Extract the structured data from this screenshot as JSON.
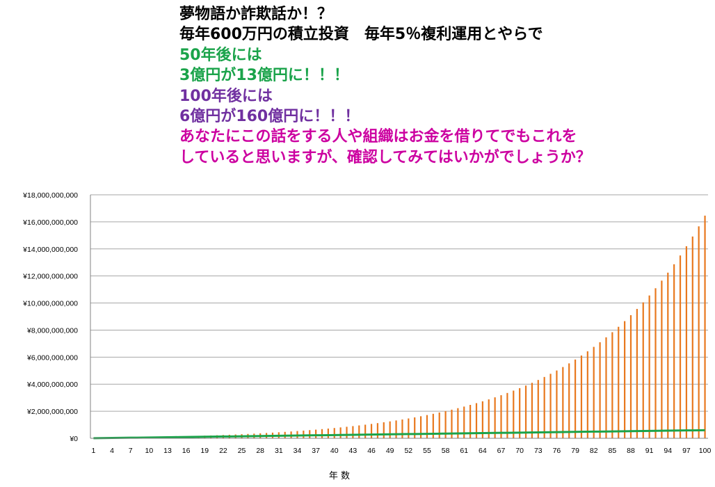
{
  "headline": [
    {
      "text": "夢物語か詐欺話か！？",
      "color": "#000000"
    },
    {
      "text": "毎年600万円の積立投資　毎年5％複利運用とやらで",
      "color": "#000000"
    },
    {
      "text": "50年後には",
      "color": "#1aa34a"
    },
    {
      "text": "3億円が13億円に！！！",
      "color": "#1aa34a"
    },
    {
      "text": "100年後には",
      "color": "#7030a0"
    },
    {
      "text": "6億円が160億円に！！！",
      "color": "#7030a0"
    },
    {
      "text": "あなたにこの話をする人や組織はお金を借りてでもこれを",
      "color": "#cc00a0"
    },
    {
      "text": "していると思いますが、確認してみてはいかがでしょうか？",
      "color": "#cc00a0"
    }
  ],
  "colors": {
    "bar": "#e8781e",
    "line": "#1aa34a",
    "grid": "#a6a6a6",
    "axis": "#808080"
  },
  "chart_data": {
    "type": "bar",
    "xlabel": "年 数",
    "ylabel": "",
    "ylim": [
      0,
      18000000000
    ],
    "yticks": [
      0,
      2000000000,
      4000000000,
      6000000000,
      8000000000,
      10000000000,
      12000000000,
      14000000000,
      16000000000,
      18000000000
    ],
    "ytick_labels": [
      "¥0",
      "¥2,000,000,000",
      "¥4,000,000,000",
      "¥6,000,000,000",
      "¥8,000,000,000",
      "¥10,000,000,000",
      "¥12,000,000,000",
      "¥14,000,000,000",
      "¥16,000,000,000",
      "¥18,000,000,000"
    ],
    "x_start": 1,
    "x_end": 100,
    "xtick_labels": [
      "1",
      "4",
      "7",
      "10",
      "13",
      "16",
      "19",
      "22",
      "25",
      "28",
      "31",
      "34",
      "37",
      "40",
      "43",
      "46",
      "49",
      "52",
      "55",
      "58",
      "61",
      "64",
      "67",
      "70",
      "73",
      "76",
      "79",
      "82",
      "85",
      "88",
      "91",
      "94",
      "97",
      "100"
    ],
    "grid": true,
    "legend": "none",
    "series": [
      {
        "kind": "bar",
        "values": [
          6300000,
          12915000,
          19860750,
          27153788,
          34811477,
          42852051,
          51294653,
          60159386,
          69467355,
          79240723,
          89502759,
          100277897,
          111591792,
          123471381,
          135944950,
          149042198,
          162794308,
          177234023,
          192395724,
          208315510,
          225031286,
          242582850,
          261011993,
          280362593,
          300680722,
          322014758,
          344415496,
          367936271,
          392633084,
          418564739,
          445792976,
          474382625,
          504401756,
          535921844,
          569017936,
          603768833,
          640257275,
          678570138,
          718798645,
          761038578,
          805390506,
          851960032,
          900858033,
          952200935,
          1006110982,
          1062716531,
          1122152357,
          1184559975,
          1250087974,
          1318892373,
          1391136991,
          1466993841,
          1546643533,
          1630275710,
          1718089495,
          1810293970,
          1907108669,
          2008764102,
          2115502307,
          2227577423,
          2345256294,
          2468819109,
          2598560064,
          2734788067,
          2877827471,
          3028018844,
          3185719786,
          3351305776,
          3525171064,
          3707729618,
          3899416099,
          4100686904,
          4312021249,
          4533922312,
          4766918427,
          5011564349,
          5268442566,
          5538164694,
          5821372929,
          6118741575,
          6430978654,
          6758827587,
          7103068966,
          7464522415,
          7844048535,
          8242550962,
          8661278510,
          9101042436,
          9563044557,
          10048496785,
          10558221624,
          11093432706,
          11655404341,
          12245474558,
          12865048286,
          13515600701,
          14198680736,
          14915914772,
          15669010511,
          16459761036
        ]
      },
      {
        "kind": "line",
        "values": [
          6000000,
          12000000,
          18000000,
          24000000,
          30000000,
          36000000,
          42000000,
          48000000,
          54000000,
          60000000,
          66000000,
          72000000,
          78000000,
          84000000,
          90000000,
          96000000,
          102000000,
          108000000,
          114000000,
          120000000,
          126000000,
          132000000,
          138000000,
          144000000,
          150000000,
          156000000,
          162000000,
          168000000,
          174000000,
          180000000,
          186000000,
          192000000,
          198000000,
          204000000,
          210000000,
          216000000,
          222000000,
          228000000,
          234000000,
          240000000,
          246000000,
          252000000,
          258000000,
          264000000,
          270000000,
          276000000,
          282000000,
          288000000,
          294000000,
          300000000,
          306000000,
          312000000,
          318000000,
          324000000,
          330000000,
          336000000,
          342000000,
          348000000,
          354000000,
          360000000,
          366000000,
          372000000,
          378000000,
          384000000,
          390000000,
          396000000,
          402000000,
          408000000,
          414000000,
          420000000,
          426000000,
          432000000,
          438000000,
          444000000,
          450000000,
          456000000,
          462000000,
          468000000,
          474000000,
          480000000,
          486000000,
          492000000,
          498000000,
          504000000,
          510000000,
          516000000,
          522000000,
          528000000,
          534000000,
          540000000,
          546000000,
          552000000,
          558000000,
          564000000,
          570000000,
          576000000,
          582000000,
          588000000,
          594000000,
          600000000
        ]
      }
    ]
  }
}
